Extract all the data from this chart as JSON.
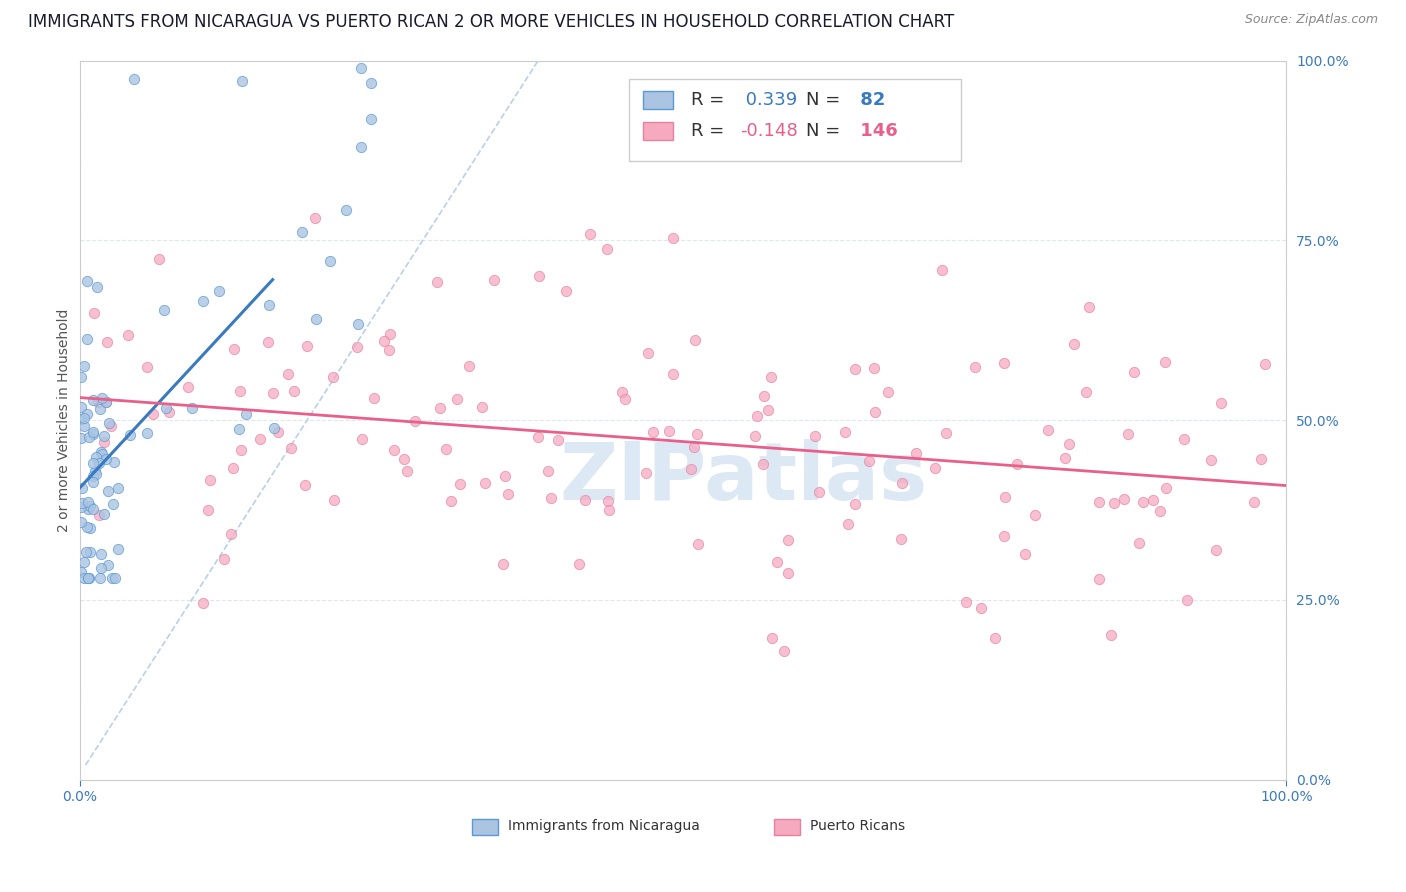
{
  "title": "IMMIGRANTS FROM NICARAGUA VS PUERTO RICAN 2 OR MORE VEHICLES IN HOUSEHOLD CORRELATION CHART",
  "source": "Source: ZipAtlas.com",
  "ylabel": "2 or more Vehicles in Household",
  "xlim": [
    0,
    1.0
  ],
  "ylim": [
    0,
    1.0
  ],
  "r_nicaragua": 0.339,
  "n_nicaragua": 82,
  "r_puertorico": -0.148,
  "n_puertorico": 146,
  "color_nicaragua": "#aac4e2",
  "color_puertorico": "#f5aabf",
  "edge_nicaragua": "#5a9ad4",
  "edge_puertorico": "#e880a0",
  "line_color_nicaragua": "#3a7abf",
  "line_color_puertorico": "#e8608a",
  "dashed_line_color": "#b8d0ea",
  "watermark_color": "#dde8f5",
  "title_fontsize": 12,
  "axis_label_fontsize": 10,
  "tick_fontsize": 10,
  "legend_fontsize": 13
}
